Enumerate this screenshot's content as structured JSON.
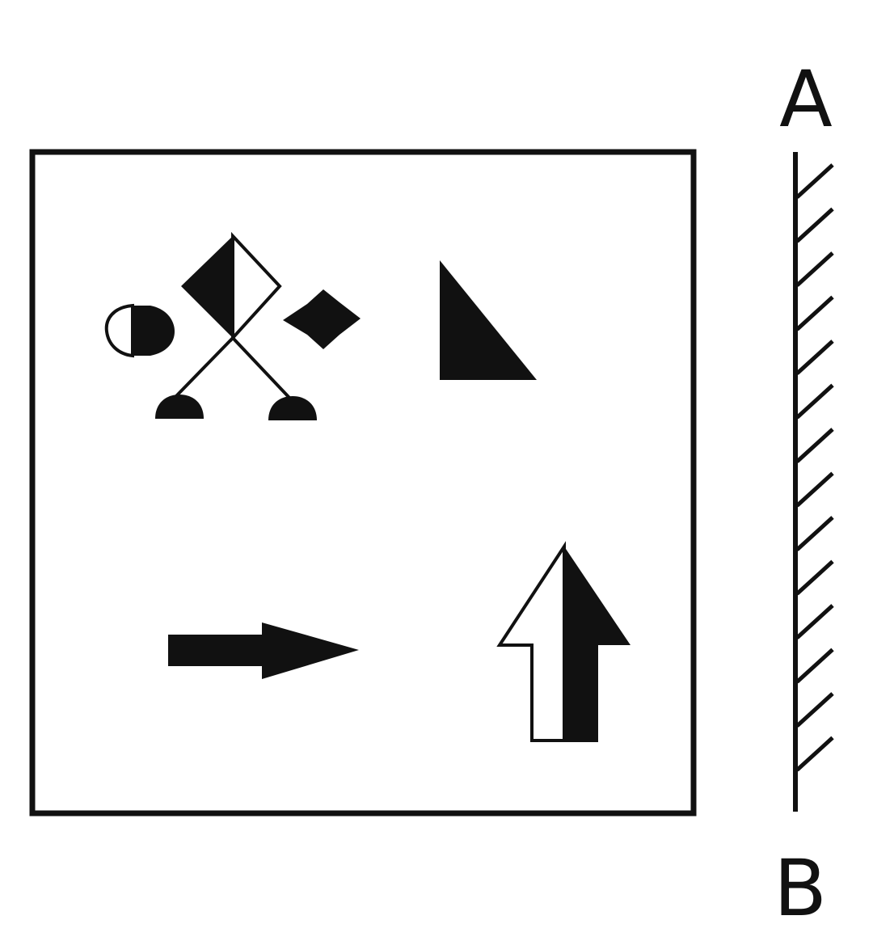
{
  "mirror": {
    "top_label": "A",
    "bottom_label": "B"
  },
  "colors": {
    "ink": "#111111",
    "paper": "#ffffff"
  },
  "figures": [
    "kite-figure",
    "right-triangle",
    "right-pointing-arrow",
    "up-arrow"
  ]
}
